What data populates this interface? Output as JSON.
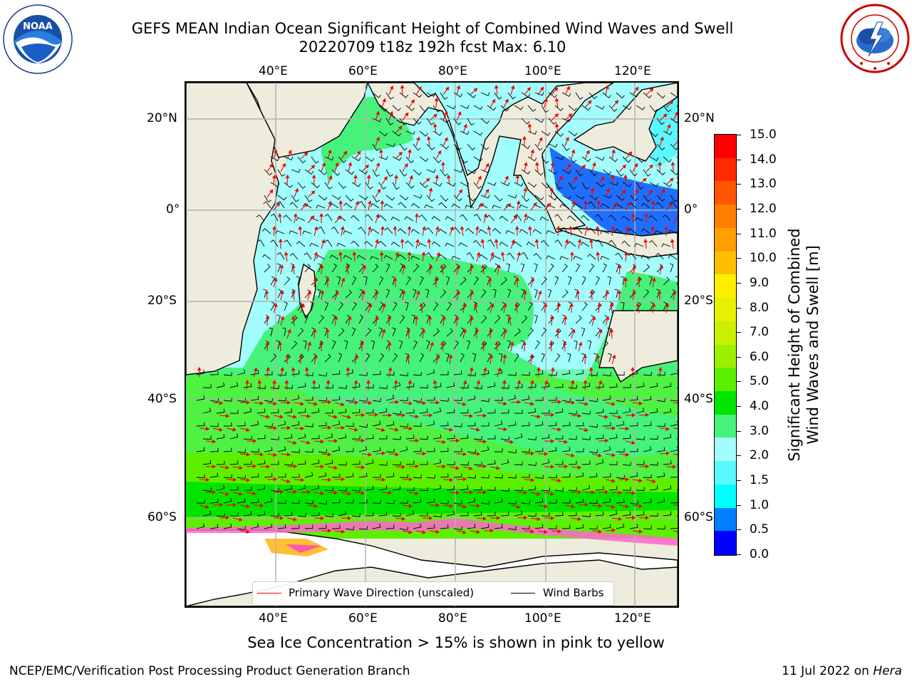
{
  "header": {
    "title_line1": "GEFS MEAN Indian Ocean Significant Height of Combined Wind Waves and Swell",
    "title_line2": "20220709 t18z 192h fcst   Max: 6.10"
  },
  "logos": {
    "left": "NOAA",
    "right": "NATIONAL WEATHER SERVICE"
  },
  "map": {
    "lon_ticks_top": [
      "40°E",
      "60°E",
      "80°E",
      "100°E",
      "120°E"
    ],
    "lon_ticks_bottom": [
      "40°E",
      "60°E",
      "80°E",
      "100°E",
      "120°E"
    ],
    "lat_ticks_left": [
      "20°N",
      "0°",
      "20°S",
      "40°S",
      "60°S"
    ],
    "lat_ticks_right": [
      "20°N",
      "0°",
      "20°S",
      "40°S",
      "60°S"
    ],
    "legend": {
      "wave_label": "Primary Wave Direction (unscaled)",
      "wave_color": "#ff0000",
      "wind_label": "Wind Barbs",
      "wind_color": "#000000"
    }
  },
  "colorbar": {
    "label_line1": "Significant Height of Combined",
    "label_line2": "Wind Waves and Swell [m]",
    "tick_labels": [
      "15.0",
      "14.0",
      "13.0",
      "12.0",
      "11.0",
      "10.0",
      "9.0",
      "8.0",
      "7.0",
      "6.0",
      "5.0",
      "4.0",
      "3.0",
      "2.0",
      "1.5",
      "1.0",
      "0.5",
      "0.0"
    ],
    "colors_top_to_bottom": [
      "#ff0000",
      "#ff2a00",
      "#ff5500",
      "#ff7f00",
      "#ff9f00",
      "#ffbf00",
      "#ffee00",
      "#e8f000",
      "#c8f000",
      "#9af000",
      "#5cf000",
      "#00e400",
      "#46f27a",
      "#a2fdfd",
      "#5cf8ff",
      "#00ffff",
      "#0080ff",
      "#0000ff"
    ]
  },
  "footer": {
    "note": "Sea Ice Concentration > 15% is shown in pink to yellow",
    "left": "NCEP/EMC/Verification Post Processing Product Generation Branch",
    "right_date": "11 Jul 2022 on",
    "right_host": "Hera"
  }
}
